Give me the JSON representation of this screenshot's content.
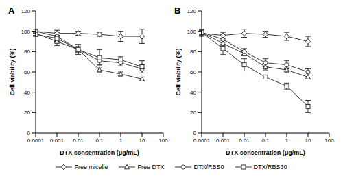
{
  "chart_data": [
    {
      "type": "line",
      "title": "A",
      "x_label": "DTX concentration (μg/mL)",
      "y_label": "Cell viability (%)",
      "x": [
        0.0001,
        0.001,
        0.01,
        0.1,
        1,
        10
      ],
      "log": "x",
      "xlim": [
        0.0001,
        100
      ],
      "xticks": [
        0.0001,
        0.001,
        0.01,
        0.1,
        1,
        10,
        100
      ],
      "ylim": [
        0,
        120
      ],
      "yticks": [
        0,
        20,
        40,
        60,
        80,
        100,
        120
      ],
      "grid": false,
      "legend": "bottom",
      "series": [
        {
          "name": "Free micelle",
          "color": "#333333",
          "marker": "diamond",
          "values": [
            100,
            98,
            98,
            97,
            95,
            95
          ],
          "error": [
            2,
            3,
            2,
            2,
            5,
            7
          ]
        },
        {
          "name": "Free DTX",
          "color": "#333333",
          "marker": "triangle",
          "values": [
            98,
            90,
            82,
            62,
            58,
            53
          ],
          "error": [
            2,
            4,
            5,
            2,
            2,
            2
          ]
        },
        {
          "name": "DTX/RBS0",
          "color": "#333333",
          "marker": "circle",
          "values": [
            100,
            95,
            82,
            71,
            69,
            63
          ],
          "error": [
            2,
            4,
            3,
            4,
            3,
            4
          ]
        },
        {
          "name": "DTX/RBS30",
          "color": "#333333",
          "marker": "square",
          "values": [
            97,
            93,
            82,
            74,
            72,
            65
          ],
          "error": [
            2,
            3,
            5,
            8,
            3,
            6
          ]
        }
      ]
    },
    {
      "type": "line",
      "title": "B",
      "x_label": "DTX concentration (μg/mL)",
      "y_label": "Cell viability (%)",
      "x": [
        0.0001,
        0.001,
        0.01,
        0.1,
        1,
        10
      ],
      "log": "x",
      "xlim": [
        0.0001,
        100
      ],
      "xticks": [
        0.0001,
        0.001,
        0.01,
        0.1,
        1,
        10,
        100
      ],
      "ylim": [
        0,
        120
      ],
      "yticks": [
        0,
        20,
        40,
        60,
        80,
        100,
        120
      ],
      "grid": false,
      "legend": "bottom",
      "series": [
        {
          "name": "Free micelle",
          "color": "#333333",
          "marker": "diamond",
          "values": [
            98,
            96,
            98,
            97,
            95,
            90
          ],
          "error": [
            3,
            3,
            4,
            3,
            4,
            5
          ]
        },
        {
          "name": "Free DTX",
          "color": "#333333",
          "marker": "triangle",
          "values": [
            99,
            88,
            78,
            65,
            62,
            55
          ],
          "error": [
            2,
            3,
            2,
            3,
            2,
            2
          ]
        },
        {
          "name": "DTX/RBS0",
          "color": "#333333",
          "marker": "circle",
          "values": [
            99,
            92,
            80,
            69,
            67,
            60
          ],
          "error": [
            2,
            5,
            3,
            4,
            4,
            3
          ]
        },
        {
          "name": "DTX/RBS30",
          "color": "#333333",
          "marker": "square",
          "values": [
            99,
            83,
            67,
            55,
            46,
            26
          ],
          "error": [
            3,
            6,
            6,
            2,
            3,
            6
          ]
        }
      ]
    }
  ]
}
